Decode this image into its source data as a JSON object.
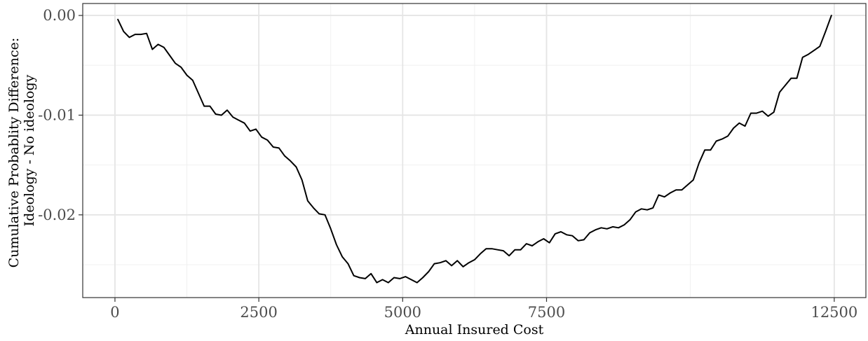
{
  "chart_data": {
    "type": "line",
    "title": "",
    "xlabel": "Annual Insured Cost",
    "ylabel_lines": [
      "Cumulative Probablity Difference:",
      "Ideology - No ideology"
    ],
    "xlim": [
      -560,
      13050
    ],
    "ylim": [
      -0.0283,
      0.0012
    ],
    "x_ticks": [
      0,
      2500,
      5000,
      7500,
      12500
    ],
    "x_tick_labels": [
      "0",
      "2500",
      "5000",
      "7500",
      "12500"
    ],
    "y_ticks": [
      0.0,
      -0.01,
      -0.02
    ],
    "y_tick_labels": [
      "0.00",
      "-0.01",
      "-0.02"
    ],
    "grid": true,
    "legend": "none",
    "line_color": "#000000",
    "x": [
      50,
      150,
      250,
      350,
      450,
      550,
      650,
      750,
      850,
      950,
      1050,
      1150,
      1250,
      1350,
      1450,
      1550,
      1650,
      1750,
      1850,
      1950,
      2050,
      2150,
      2250,
      2350,
      2450,
      2550,
      2650,
      2750,
      2850,
      2950,
      3050,
      3150,
      3250,
      3350,
      3450,
      3550,
      3650,
      3750,
      3850,
      3950,
      4050,
      4150,
      4250,
      4350,
      4450,
      4550,
      4650,
      4750,
      4850,
      4950,
      5050,
      5150,
      5250,
      5350,
      5450,
      5550,
      5650,
      5750,
      5850,
      5950,
      6050,
      6150,
      6250,
      6350,
      6450,
      6550,
      6650,
      6750,
      6850,
      6950,
      7050,
      7150,
      7250,
      7350,
      7450,
      7550,
      7650,
      7750,
      7850,
      7950,
      8050,
      8150,
      8250,
      8350,
      8450,
      8550,
      8650,
      8750,
      8850,
      8950,
      9050,
      9150,
      9250,
      9350,
      9450,
      9550,
      9650,
      9750,
      9850,
      9950,
      10050,
      10150,
      10250,
      10350,
      10450,
      10550,
      10650,
      10750,
      10850,
      10950,
      11050,
      11150,
      11250,
      11350,
      11450,
      11550,
      11650,
      11750,
      11850,
      11950,
      12050,
      12150,
      12250,
      12350,
      12450
    ],
    "y": [
      -0.0004,
      -0.0016,
      -0.0022,
      -0.0019,
      -0.0019,
      -0.0018,
      -0.0034,
      -0.0029,
      -0.0032,
      -0.004,
      -0.0048,
      -0.0052,
      -0.006,
      -0.0065,
      -0.0078,
      -0.0091,
      -0.0091,
      -0.0099,
      -0.01,
      -0.0095,
      -0.0102,
      -0.0105,
      -0.0108,
      -0.0116,
      -0.0114,
      -0.0122,
      -0.0125,
      -0.0132,
      -0.0133,
      -0.0141,
      -0.0146,
      -0.0152,
      -0.0165,
      -0.0186,
      -0.0193,
      -0.0199,
      -0.02,
      -0.0214,
      -0.023,
      -0.0242,
      -0.0249,
      -0.0261,
      -0.0263,
      -0.0264,
      -0.0259,
      -0.0268,
      -0.0265,
      -0.0268,
      -0.0263,
      -0.0264,
      -0.0262,
      -0.0265,
      -0.0268,
      -0.0263,
      -0.0257,
      -0.0249,
      -0.0248,
      -0.0246,
      -0.0251,
      -0.0246,
      -0.0252,
      -0.0248,
      -0.0245,
      -0.0239,
      -0.0234,
      -0.0234,
      -0.0235,
      -0.0236,
      -0.0241,
      -0.0235,
      -0.0235,
      -0.0229,
      -0.0231,
      -0.0227,
      -0.0224,
      -0.0228,
      -0.0219,
      -0.0217,
      -0.022,
      -0.0221,
      -0.0226,
      -0.0225,
      -0.0218,
      -0.0215,
      -0.0213,
      -0.0214,
      -0.0212,
      -0.0213,
      -0.021,
      -0.0205,
      -0.0197,
      -0.0194,
      -0.0195,
      -0.0193,
      -0.018,
      -0.0182,
      -0.0178,
      -0.0175,
      -0.0175,
      -0.017,
      -0.0165,
      -0.0148,
      -0.0135,
      -0.0135,
      -0.0126,
      -0.0124,
      -0.0121,
      -0.0113,
      -0.0108,
      -0.0111,
      -0.0098,
      -0.0098,
      -0.0096,
      -0.0101,
      -0.0097,
      -0.0077,
      -0.007,
      -0.0063,
      -0.0063,
      -0.0042,
      -0.0039,
      -0.0035,
      -0.0031,
      -0.0016,
      0.0
    ]
  }
}
